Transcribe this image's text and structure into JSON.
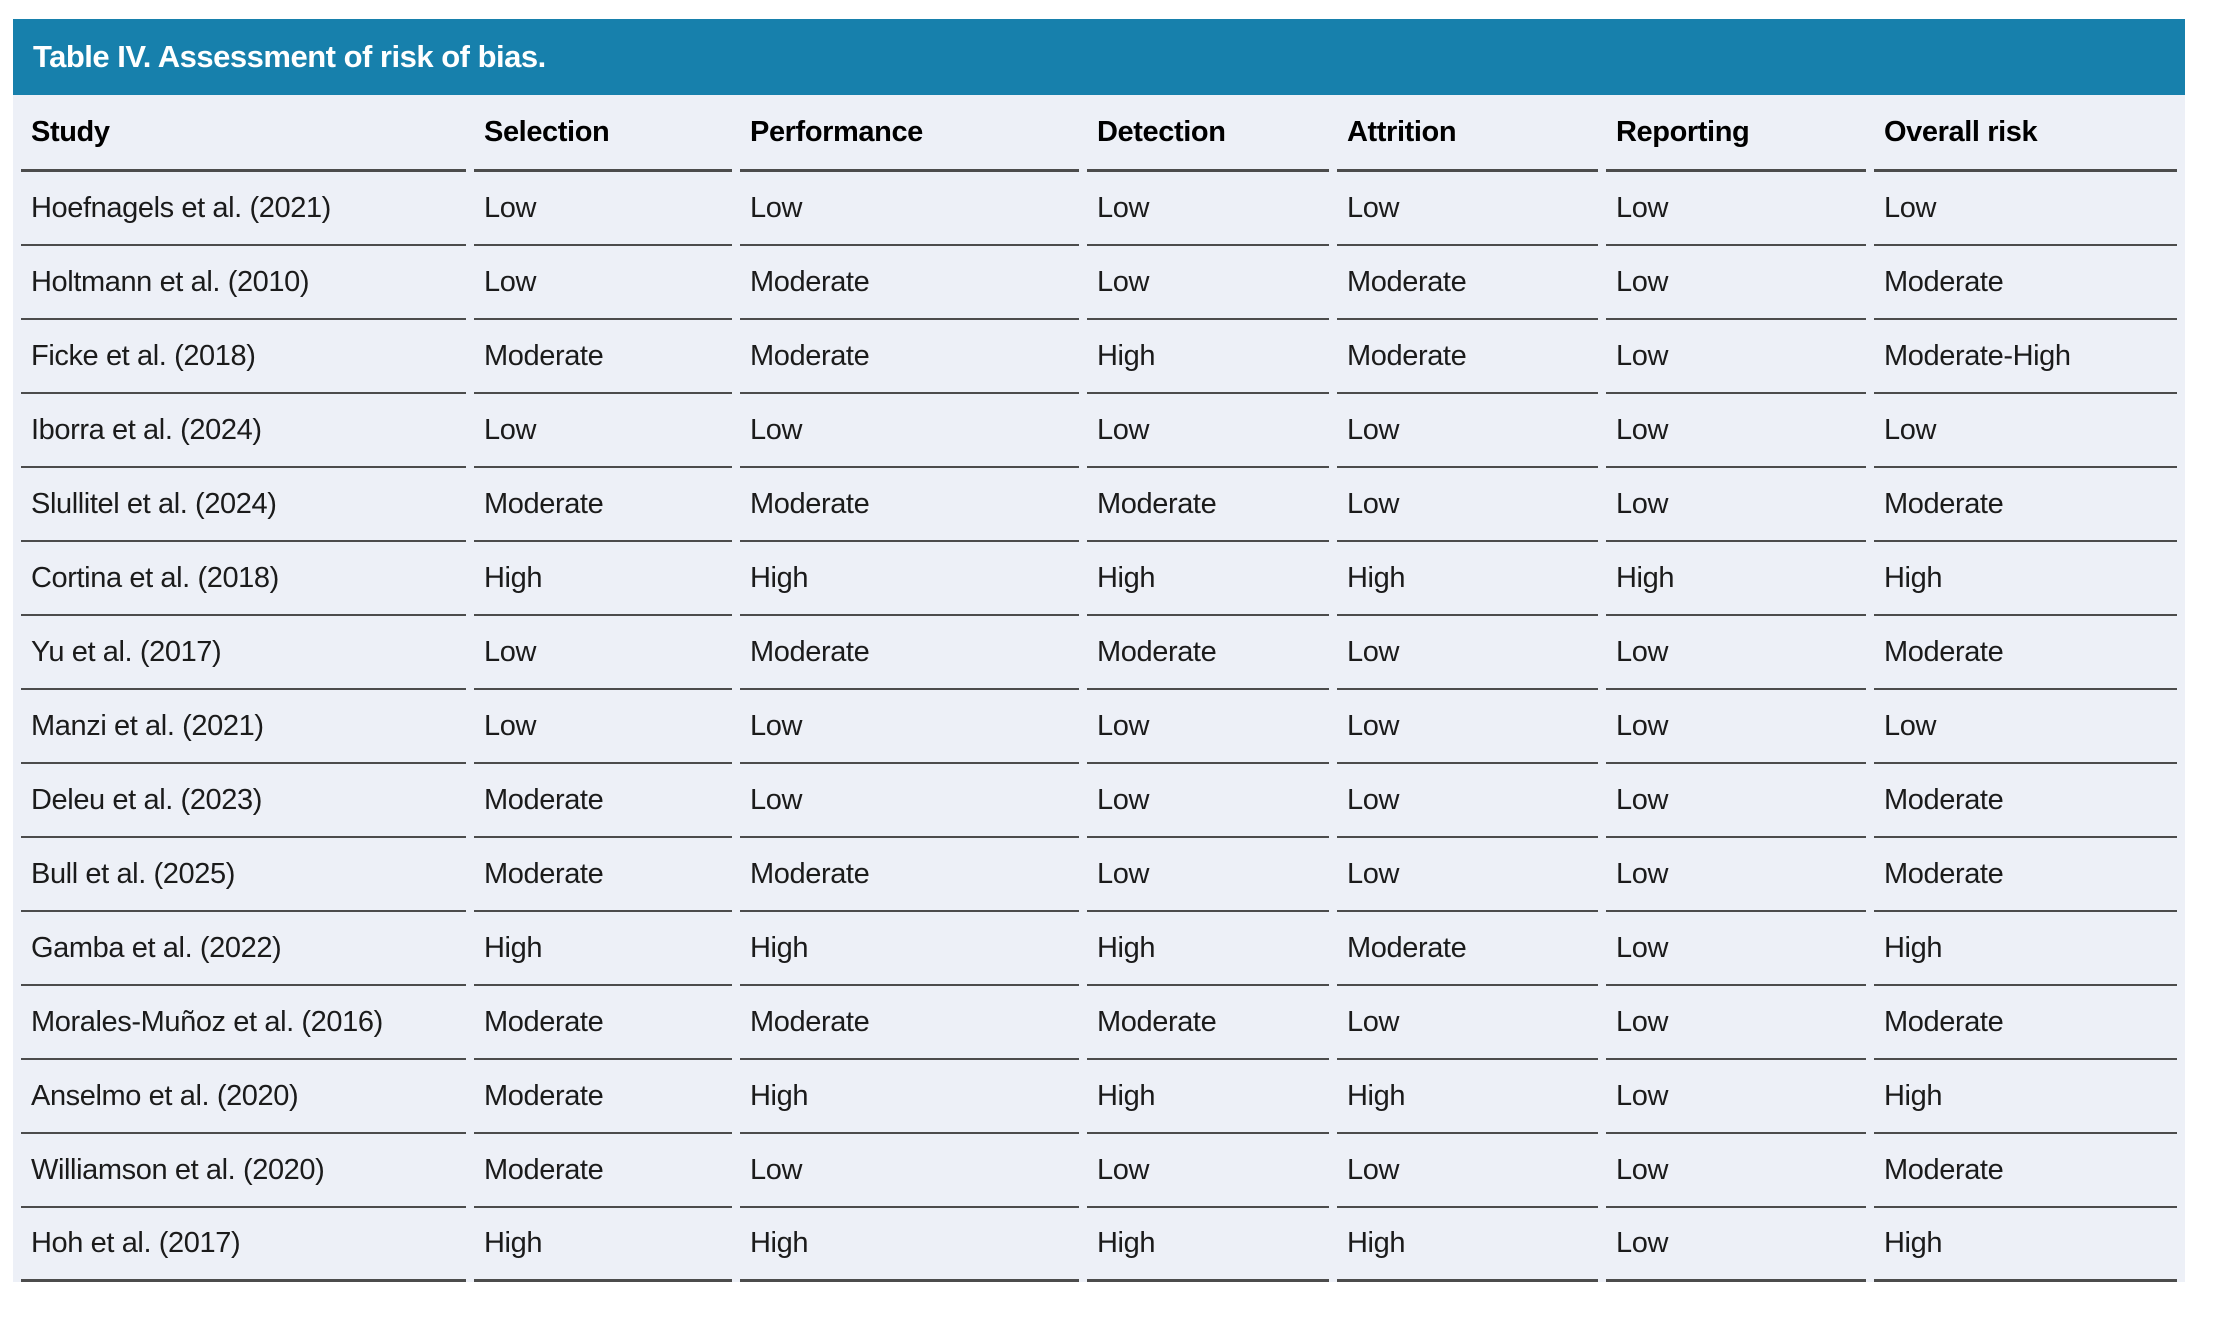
{
  "title": "Table IV. Assessment of risk of bias.",
  "colors": {
    "header_bar": "#1780AC",
    "row_bg": "#EDF0F7",
    "rule": "#4C4C4C",
    "title_text": "#FFFFFF",
    "body_text": "#1B1B1B"
  },
  "columns": [
    "Study",
    "Selection",
    "Performance",
    "Detection",
    "Attrition",
    "Reporting",
    "Overall risk"
  ],
  "rows": [
    {
      "study": "Hoefnagels et al. (2021)",
      "selection": "Low",
      "performance": "Low",
      "detection": "Low",
      "attrition": "Low",
      "reporting": "Low",
      "overall": "Low"
    },
    {
      "study": "Holtmann et al. (2010)",
      "selection": "Low",
      "performance": "Moderate",
      "detection": "Low",
      "attrition": "Moderate",
      "reporting": "Low",
      "overall": "Moderate"
    },
    {
      "study": "Ficke et al. (2018)",
      "selection": "Moderate",
      "performance": "Moderate",
      "detection": "High",
      "attrition": "Moderate",
      "reporting": "Low",
      "overall": "Moderate-High"
    },
    {
      "study": "Iborra et al. (2024)",
      "selection": "Low",
      "performance": "Low",
      "detection": "Low",
      "attrition": "Low",
      "reporting": "Low",
      "overall": "Low"
    },
    {
      "study": "Slullitel et al. (2024)",
      "selection": "Moderate",
      "performance": "Moderate",
      "detection": "Moderate",
      "attrition": "Low",
      "reporting": "Low",
      "overall": "Moderate"
    },
    {
      "study": "Cortina et al. (2018)",
      "selection": "High",
      "performance": "High",
      "detection": "High",
      "attrition": "High",
      "reporting": "High",
      "overall": "High"
    },
    {
      "study": "Yu et al. (2017)",
      "selection": "Low",
      "performance": "Moderate",
      "detection": "Moderate",
      "attrition": "Low",
      "reporting": "Low",
      "overall": "Moderate"
    },
    {
      "study": "Manzi et al. (2021)",
      "selection": "Low",
      "performance": "Low",
      "detection": "Low",
      "attrition": "Low",
      "reporting": "Low",
      "overall": "Low"
    },
    {
      "study": "Deleu et al. (2023)",
      "selection": "Moderate",
      "performance": "Low",
      "detection": "Low",
      "attrition": "Low",
      "reporting": "Low",
      "overall": "Moderate"
    },
    {
      "study": "Bull et al. (2025)",
      "selection": "Moderate",
      "performance": "Moderate",
      "detection": "Low",
      "attrition": "Low",
      "reporting": "Low",
      "overall": "Moderate"
    },
    {
      "study": "Gamba et al. (2022)",
      "selection": "High",
      "performance": "High",
      "detection": "High",
      "attrition": "Moderate",
      "reporting": "Low",
      "overall": "High"
    },
    {
      "study": "Morales-Muñoz et al. (2016)",
      "selection": "Moderate",
      "performance": "Moderate",
      "detection": "Moderate",
      "attrition": "Low",
      "reporting": "Low",
      "overall": "Moderate"
    },
    {
      "study": "Anselmo et al. (2020)",
      "selection": "Moderate",
      "performance": "High",
      "detection": "High",
      "attrition": "High",
      "reporting": "Low",
      "overall": "High"
    },
    {
      "study": "Williamson et al. (2020)",
      "selection": "Moderate",
      "performance": "Low",
      "detection": "Low",
      "attrition": "Low",
      "reporting": "Low",
      "overall": "Moderate"
    },
    {
      "study": "Hoh et al. (2017)",
      "selection": "High",
      "performance": "High",
      "detection": "High",
      "attrition": "High",
      "reporting": "Low",
      "overall": "High"
    }
  ]
}
